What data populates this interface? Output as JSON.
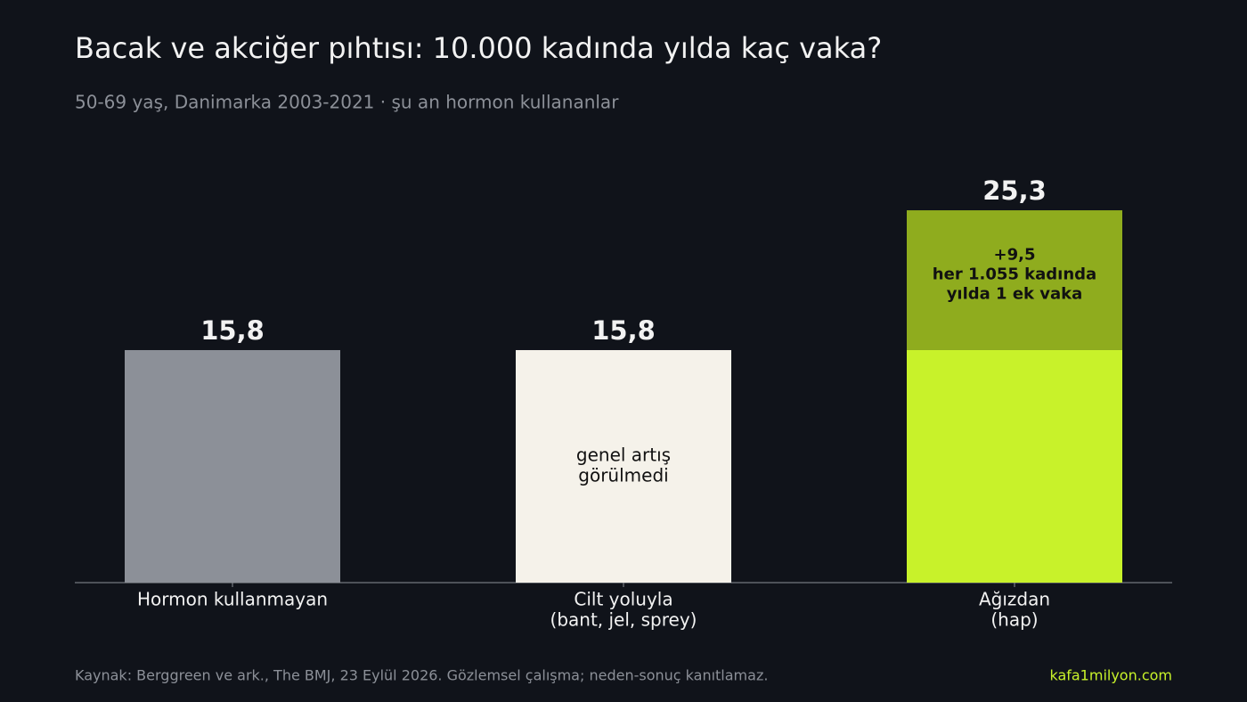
{
  "chart_data": {
    "type": "bar",
    "stacked": true,
    "title": "Bacak ve akciğer pıhtısı: 10.000 kadında yılda kaç vaka?",
    "subtitle": "50-69 yaş, Danimarka 2003-2021 · şu an hormon kullananlar",
    "categories": [
      [
        "Hormon kullanmayan"
      ],
      [
        "Cilt yoluyla",
        "(bant, jel, sprey)"
      ],
      [
        "Ağızdan",
        "(hap)"
      ]
    ],
    "series": [
      {
        "colors": [
          "#8c9098",
          "#f5f2ea",
          "#c8f22a"
        ],
        "values": [
          15.8,
          15.8,
          15.8
        ],
        "notes": [
          null,
          [
            "genel artış",
            "görülmedi"
          ],
          null
        ]
      },
      {
        "color": "#8fac1e",
        "values": [
          null,
          null,
          9.5
        ],
        "value_labels": [
          null,
          null,
          "+9,5"
        ],
        "notes": [
          null,
          null,
          [
            "her 1.055 kadında",
            "yılda 1 ek vaka"
          ]
        ]
      }
    ],
    "total_labels": [
      "15,8",
      "15,8",
      "25,3"
    ],
    "ylim": [
      0,
      30
    ],
    "source": "Kaynak: Berggreen ve ark., The BMJ, 23 Eylül 2026. Gözlemsel çalışma; neden-sonuç kanıtlamaz.",
    "site": "kafa1milyon.com"
  }
}
